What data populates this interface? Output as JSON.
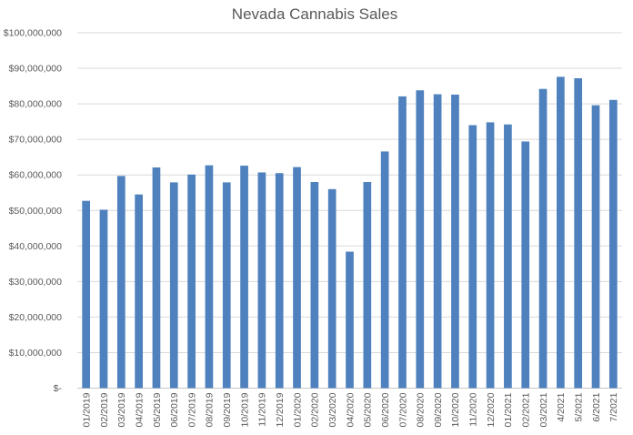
{
  "page": {
    "background_color": "#ffffff",
    "text_color": "#595959"
  },
  "chart_data": {
    "type": "bar",
    "title": "Nevada Cannabis Sales",
    "xlabel": "",
    "ylabel": "",
    "legend": false,
    "grid": true,
    "series_name": "Sales",
    "series_color": "#4E81BD",
    "gridline_color": "#D9D9D9",
    "axis_line_color": "#C6C6C6",
    "text_color": "#595959",
    "categories": [
      "01/2019",
      "02/2019",
      "03/2019",
      "04/2019",
      "05/2019",
      "06/2019",
      "07/2019",
      "08/2019",
      "09/2019",
      "10/2019",
      "11/2019",
      "12/2019",
      "01/2020",
      "02/2020",
      "03/2020",
      "04/2020",
      "05/2020",
      "06/2020",
      "07/2020",
      "08/2020",
      "09/2020",
      "10/2020",
      "11/2020",
      "12/2020",
      "01/2021",
      "02/2021",
      "03/2021",
      "4/2021",
      "5/2021",
      "6/2021",
      "7/2021"
    ],
    "values": [
      52700000,
      50200000,
      59700000,
      54500000,
      62100000,
      57900000,
      60100000,
      62700000,
      57900000,
      62600000,
      60700000,
      60500000,
      62200000,
      58000000,
      56000000,
      38400000,
      58000000,
      66600000,
      82100000,
      83800000,
      82700000,
      82600000,
      74000000,
      74800000,
      74200000,
      69400000,
      84200000,
      87600000,
      87200000,
      79600000,
      81100000
    ],
    "y_axis": {
      "min": 0,
      "max": 100000000,
      "step": 10000000,
      "tick_labels": [
        "$-",
        "$10,000,000",
        "$20,000,000",
        "$30,000,000",
        "$40,000,000",
        "$50,000,000",
        "$60,000,000",
        "$70,000,000",
        "$80,000,000",
        "$90,000,000",
        "$100,000,000"
      ]
    }
  }
}
